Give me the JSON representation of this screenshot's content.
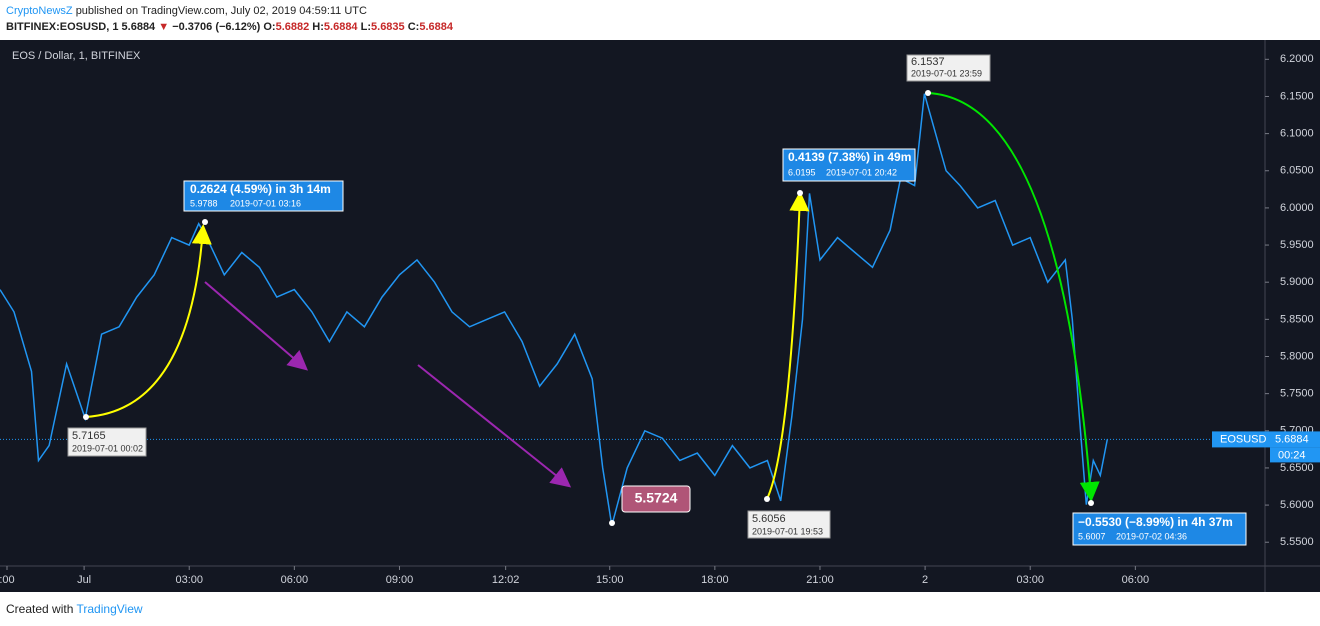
{
  "header": {
    "brand": "CryptoNewsZ",
    "published": "published on TradingView.com, July 02, 2019 04:59:11 UTC",
    "symbol": "BITFINEX:EOSUSD, 1",
    "last": "5.6884",
    "change": "−0.3706 (−6.12%)",
    "o_label": "O:",
    "o": "5.6882",
    "h_label": "H:",
    "h": "5.6884",
    "l_label": "L:",
    "l": "5.6835",
    "c_label": "C:",
    "c": "5.6884"
  },
  "footer": {
    "text": "Created with",
    "brand": "TradingView"
  },
  "chart_data": {
    "type": "line",
    "x": [
      -2.4,
      -2.0,
      -1.5,
      -1.3,
      -1.0,
      -0.5,
      0.03,
      0.5,
      1.0,
      1.5,
      2.0,
      2.5,
      3.0,
      3.27,
      3.5,
      4.0,
      4.5,
      5.0,
      5.5,
      6.0,
      6.5,
      7.0,
      7.5,
      8.0,
      8.5,
      9.0,
      9.5,
      10.0,
      10.5,
      11.0,
      11.5,
      12.0,
      12.5,
      13.0,
      13.5,
      14.0,
      14.5,
      14.8,
      15.06,
      15.5,
      16.0,
      16.5,
      17.0,
      17.5,
      18.0,
      18.5,
      19.0,
      19.5,
      19.88,
      20.2,
      20.5,
      20.7,
      21.0,
      21.5,
      22.0,
      22.5,
      23.0,
      23.3,
      23.7,
      23.98,
      24.3,
      24.6,
      25.0,
      25.5,
      26.0,
      26.5,
      27.0,
      27.5,
      28.0,
      28.2,
      28.4,
      28.6,
      28.8,
      29.0,
      29.2
    ],
    "series": [
      {
        "name": "EOS / Dollar, 1, BITFINEX",
        "color": "#2196f3",
        "values": [
          5.89,
          5.86,
          5.78,
          5.66,
          5.68,
          5.79,
          5.7165,
          5.83,
          5.84,
          5.88,
          5.91,
          5.96,
          5.95,
          5.9788,
          5.96,
          5.91,
          5.94,
          5.92,
          5.88,
          5.89,
          5.86,
          5.82,
          5.86,
          5.84,
          5.88,
          5.91,
          5.93,
          5.9,
          5.86,
          5.84,
          5.85,
          5.86,
          5.82,
          5.76,
          5.79,
          5.83,
          5.77,
          5.65,
          5.5724,
          5.65,
          5.7,
          5.69,
          5.66,
          5.67,
          5.64,
          5.68,
          5.65,
          5.66,
          5.6056,
          5.72,
          5.85,
          6.0195,
          5.93,
          5.96,
          5.94,
          5.92,
          5.97,
          6.04,
          6.03,
          6.1537,
          6.1,
          6.05,
          6.03,
          6,
          6.01,
          5.95,
          5.96,
          5.9,
          5.93,
          5.85,
          5.72,
          5.6007,
          5.66,
          5.64,
          5.6884
        ]
      }
    ],
    "xlim": [
      -2.4,
      33.7
    ],
    "xticks": [
      {
        "value": -2.2,
        "label": ":00"
      },
      {
        "value": 0,
        "label": "Jul"
      },
      {
        "value": 3,
        "label": "03:00"
      },
      {
        "value": 6,
        "label": "06:00"
      },
      {
        "value": 9,
        "label": "09:00"
      },
      {
        "value": 12.03,
        "label": "12:02"
      },
      {
        "value": 15,
        "label": "15:00"
      },
      {
        "value": 18,
        "label": "18:00"
      },
      {
        "value": 21,
        "label": "21:00"
      },
      {
        "value": 24,
        "label": "2"
      },
      {
        "value": 27,
        "label": "03:00"
      },
      {
        "value": 30,
        "label": "06:00"
      }
    ],
    "ylim": [
      5.518,
      6.226
    ],
    "yticks": [
      {
        "value": 5.55,
        "label": "5.5500"
      },
      {
        "value": 5.6,
        "label": "5.6000"
      },
      {
        "value": 5.65,
        "label": "5.6500"
      },
      {
        "value": 5.7,
        "label": "5.7000"
      },
      {
        "value": 5.75,
        "label": "5.7500"
      },
      {
        "value": 5.8,
        "label": "5.8000"
      },
      {
        "value": 5.85,
        "label": "5.8500"
      },
      {
        "value": 5.9,
        "label": "5.9000"
      },
      {
        "value": 5.95,
        "label": "5.9500"
      },
      {
        "value": 6.0,
        "label": "6.0000"
      },
      {
        "value": 6.05,
        "label": "6.0500"
      },
      {
        "value": 6.1,
        "label": "6.1000"
      },
      {
        "value": 6.15,
        "label": "6.1500"
      },
      {
        "value": 6.2,
        "label": "6.2000"
      }
    ],
    "price_label": {
      "name": "EOSUSD",
      "value": 5.6884,
      "label": "5.6884",
      "countdown": "00:24"
    },
    "annotations": [
      {
        "value": 5.7165,
        "date": "2019-07-01 00:02"
      },
      {
        "change": "0.2624 (4.59%) in 3h 14m",
        "value": 5.9788,
        "date": "2019-07-01  03:16"
      },
      {
        "value": 5.5724
      },
      {
        "value": 5.6056,
        "date": "2019-07-01 19:53"
      },
      {
        "change": "0.4139 (7.38%) in 49m",
        "value": 6.0195,
        "date": "2019-07-01  20:42"
      },
      {
        "value": 6.1537,
        "date": "2019-07-01 23:59"
      },
      {
        "change": "−0.5530 (−8.99%) in 4h 37m",
        "value": 5.6007,
        "date": "2019-07-02  04:36"
      }
    ]
  }
}
